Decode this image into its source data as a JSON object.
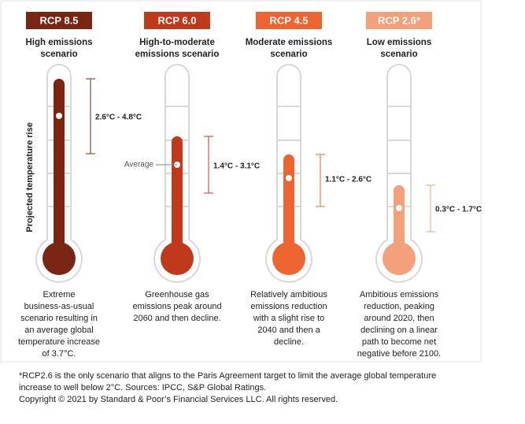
{
  "axis_label": "Projected temperature rise",
  "average_label": "Average",
  "scenarios": [
    {
      "code": "RCP 8.5",
      "color": "#7a2412",
      "title": [
        "High emissions",
        "scenario"
      ],
      "range": "2.6°C - 4.8°C",
      "description": [
        "Extreme",
        "business-as-usual",
        "scenario resulting in",
        "an average global",
        "temperature increase",
        "of 3.7°C."
      ]
    },
    {
      "code": "RCP 6.0",
      "color": "#c0391b",
      "title": [
        "High-to-moderate",
        "emissions scenario"
      ],
      "range": "1.4°C - 3.1°C",
      "description": [
        "Greenhouse gas",
        "emissions peak around",
        "2060 and then decline."
      ]
    },
    {
      "code": "RCP 4.5",
      "color": "#ee6430",
      "title": [
        "Moderate emissions",
        "scenario"
      ],
      "range": "1.1°C - 2.6°C",
      "description": [
        "Relatively ambitious",
        "emissions reduction",
        "with a slight rise to",
        "2040 and then a",
        "decline."
      ]
    },
    {
      "code": "RCP 2.6*",
      "color": "#f4a07a",
      "title": [
        "Low emissions",
        "scenario"
      ],
      "range": "0.3°C - 1.7°C",
      "description": [
        "Ambitious emissions",
        "reduction, peaking",
        "around 2020, then",
        "declining on a linear",
        "path to become net",
        "negative before 2100."
      ]
    }
  ],
  "footnote": [
    "*RCP2.6 is the only scenario that aligns to the Paris Agreement target to limit the average global temperature",
    "increase to well below 2°C. Sources: IPCC, S&P Global Ratings.",
    "Copyright © 2021 by Standard & Poor’s Financial Services LLC. All rights reserved."
  ]
}
